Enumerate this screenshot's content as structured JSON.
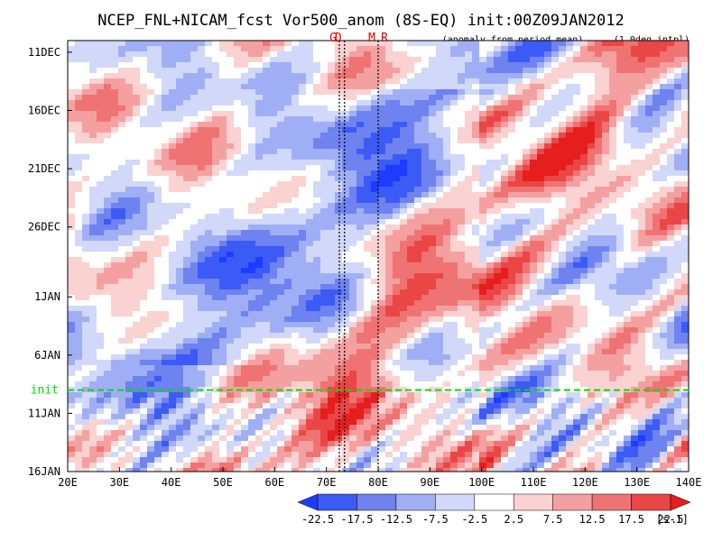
{
  "chart_data": {
    "type": "heatmap",
    "title": "NCEP_FNL+NICAM_fcst Vor500_anom (8S-EQ) init:00Z09JAN2012",
    "subtitle_left": "(anomaly from period mean)",
    "subtitle_right": "(1.0deg intpl)",
    "xlabel": "",
    "ylabel": "",
    "x_ticks": [
      20,
      30,
      40,
      50,
      60,
      70,
      80,
      90,
      100,
      110,
      120,
      130,
      140
    ],
    "x_tick_labels": [
      "20E",
      "30E",
      "40E",
      "50E",
      "60E",
      "70E",
      "80E",
      "90E",
      "100E",
      "110E",
      "120E",
      "130E",
      "140E"
    ],
    "xlim": [
      20,
      140
    ],
    "y_ticks_day": [
      0,
      5,
      10,
      15,
      21,
      26,
      31,
      36
    ],
    "y_tick_labels": [
      "11DEC",
      "16DEC",
      "21DEC",
      "26DEC",
      "1JAN",
      "6JAN",
      "11JAN",
      "16JAN"
    ],
    "ylim_day": [
      -1,
      36
    ],
    "init_line": {
      "day": 29,
      "label": "init",
      "color": "#00e000"
    },
    "reference_lines": [
      {
        "lon": 72.5,
        "label": "G"
      },
      {
        "lon": 73.5,
        "label": "D"
      },
      {
        "lon": 80,
        "label": "M"
      },
      {
        "lon": 80,
        "label": "R"
      }
    ],
    "colorbar": {
      "levels": [
        -22.5,
        -17.5,
        -12.5,
        -7.5,
        -2.5,
        2.5,
        7.5,
        12.5,
        17.5,
        22.5
      ],
      "level_labels": [
        "-22.5",
        "-17.5",
        "-12.5",
        "-7.5",
        "-2.5",
        "2.5",
        "7.5",
        "12.5",
        "17.5",
        "22.5"
      ],
      "colors": [
        "#1e3cff",
        "#3c5af5",
        "#6e82f0",
        "#a0aff5",
        "#d2d8fa",
        "#ffffff",
        "#fad2d2",
        "#f5a0a0",
        "#f07373",
        "#eb4646",
        "#e61e1e"
      ],
      "unit": "[s-1]"
    }
  }
}
